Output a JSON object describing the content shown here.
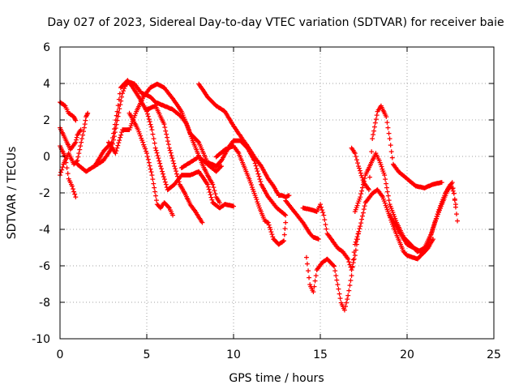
{
  "chart_data": {
    "type": "scatter",
    "title": "Day 027 of 2023, Sidereal Day-to-day VTEC variation (SDTVAR) for receiver baie",
    "xlabel": "GPS time / hours",
    "ylabel": "SDTVAR / TECUs",
    "xlim": [
      0,
      25
    ],
    "ylim": [
      -10,
      6
    ],
    "xticks": [
      0,
      5,
      10,
      15,
      20,
      25
    ],
    "yticks": [
      -10,
      -8,
      -6,
      -4,
      -2,
      0,
      2,
      4,
      6
    ],
    "xtick_labels": [
      "0",
      "5",
      "10",
      "15",
      "20",
      "25"
    ],
    "ytick_labels": [
      "-10",
      "-8",
      "-6",
      "-4",
      "-2",
      "0",
      "2",
      "4",
      "6"
    ],
    "grid": true,
    "marker": "+",
    "marker_color": "#ff0000",
    "series": [
      {
        "name": "track-1",
        "points": [
          [
            0.0,
            3.0
          ],
          [
            0.3,
            2.8
          ],
          [
            0.5,
            2.4
          ],
          [
            0.8,
            2.2
          ],
          [
            0.9,
            2.0
          ]
        ]
      },
      {
        "name": "track-2",
        "points": [
          [
            0.0,
            1.6
          ],
          [
            0.3,
            1.0
          ],
          [
            0.6,
            0.4
          ],
          [
            0.9,
            0.8
          ],
          [
            1.0,
            1.2
          ],
          [
            1.2,
            1.5
          ]
        ]
      },
      {
        "name": "track-3",
        "points": [
          [
            0.0,
            -1.0
          ],
          [
            0.2,
            -0.4
          ],
          [
            0.5,
            0.2
          ],
          [
            0.8,
            -0.4
          ],
          [
            1.0,
            -0.2
          ],
          [
            1.4,
            1.6
          ],
          [
            1.5,
            2.2
          ],
          [
            1.6,
            2.4
          ]
        ]
      },
      {
        "name": "track-4",
        "points": [
          [
            0.0,
            0.6
          ],
          [
            0.3,
            0.0
          ],
          [
            0.5,
            -1.2
          ],
          [
            0.7,
            -1.6
          ],
          [
            0.9,
            -2.2
          ]
        ]
      },
      {
        "name": "track-5",
        "points": [
          [
            1.0,
            -0.4
          ],
          [
            1.5,
            -0.8
          ],
          [
            2.0,
            -0.5
          ],
          [
            2.5,
            -0.2
          ],
          [
            3.0,
            0.5
          ],
          [
            3.3,
            2.0
          ],
          [
            3.6,
            3.5
          ],
          [
            3.8,
            4.0
          ],
          [
            4.0,
            4.1
          ],
          [
            4.3,
            4.0
          ],
          [
            4.7,
            3.5
          ],
          [
            5.2,
            3.3
          ],
          [
            5.5,
            3.0
          ],
          [
            6.0,
            2.8
          ],
          [
            6.5,
            2.6
          ],
          [
            7.0,
            2.2
          ],
          [
            7.3,
            1.8
          ],
          [
            7.6,
            1.0
          ],
          [
            7.9,
            0.3
          ],
          [
            8.2,
            -0.4
          ],
          [
            8.5,
            -1.0
          ],
          [
            8.8,
            -1.5
          ],
          [
            9.0,
            -2.2
          ],
          [
            9.2,
            -2.5
          ]
        ]
      },
      {
        "name": "track-6",
        "points": [
          [
            2.0,
            -0.5
          ],
          [
            2.5,
            0.3
          ],
          [
            3.0,
            0.8
          ],
          [
            3.3,
            2.5
          ],
          [
            3.5,
            3.8
          ],
          [
            3.9,
            4.2
          ],
          [
            4.2,
            3.8
          ],
          [
            4.6,
            3.2
          ],
          [
            5.0,
            2.5
          ],
          [
            5.3,
            1.5
          ],
          [
            5.5,
            0.5
          ],
          [
            5.8,
            -0.5
          ],
          [
            6.2,
            -1.8
          ],
          [
            6.6,
            -1.5
          ],
          [
            7.0,
            -1.0
          ],
          [
            7.5,
            -1.0
          ],
          [
            8.0,
            -0.8
          ],
          [
            8.5,
            -1.5
          ],
          [
            8.8,
            -2.5
          ],
          [
            9.2,
            -2.8
          ],
          [
            9.5,
            -2.6
          ],
          [
            10.0,
            -2.7
          ]
        ]
      },
      {
        "name": "track-7",
        "points": [
          [
            2.8,
            0.8
          ],
          [
            3.2,
            0.2
          ],
          [
            3.6,
            1.5
          ],
          [
            4.0,
            1.5
          ],
          [
            4.4,
            2.5
          ],
          [
            4.8,
            3.3
          ],
          [
            5.2,
            3.8
          ],
          [
            5.6,
            4.0
          ],
          [
            6.0,
            3.8
          ],
          [
            6.5,
            3.2
          ],
          [
            7.0,
            2.5
          ],
          [
            7.5,
            1.3
          ],
          [
            8.0,
            0.8
          ],
          [
            8.5,
            -0.3
          ],
          [
            9.0,
            -0.5
          ],
          [
            9.3,
            -0.2
          ],
          [
            9.7,
            0.5
          ],
          [
            10.0,
            0.9
          ],
          [
            10.4,
            0.9
          ],
          [
            10.8,
            0.5
          ],
          [
            11.2,
            -0.2
          ],
          [
            11.6,
            -1.5
          ],
          [
            12.0,
            -2.2
          ],
          [
            12.5,
            -2.8
          ],
          [
            13.0,
            -3.2
          ]
        ]
      },
      {
        "name": "track-8",
        "points": [
          [
            4.0,
            2.4
          ],
          [
            4.5,
            1.5
          ],
          [
            5.0,
            0.2
          ],
          [
            5.3,
            -1.0
          ],
          [
            5.6,
            -2.6
          ],
          [
            5.8,
            -2.8
          ],
          [
            6.0,
            -2.5
          ],
          [
            6.3,
            -2.8
          ],
          [
            6.5,
            -3.2
          ]
        ]
      },
      {
        "name": "track-9",
        "points": [
          [
            5.0,
            2.6
          ],
          [
            5.5,
            2.8
          ],
          [
            6.0,
            1.8
          ],
          [
            6.3,
            0.5
          ],
          [
            6.6,
            -0.5
          ],
          [
            6.9,
            -1.5
          ],
          [
            7.2,
            -2.0
          ],
          [
            7.5,
            -2.6
          ],
          [
            7.8,
            -3.0
          ],
          [
            8.0,
            -3.3
          ],
          [
            8.2,
            -3.6
          ]
        ]
      },
      {
        "name": "track-10",
        "points": [
          [
            8.0,
            4.0
          ],
          [
            8.5,
            3.3
          ],
          [
            9.0,
            2.8
          ],
          [
            9.5,
            2.5
          ],
          [
            10.0,
            1.7
          ],
          [
            10.5,
            1.0
          ],
          [
            10.8,
            0.6
          ],
          [
            11.2,
            0.0
          ],
          [
            11.6,
            -0.5
          ],
          [
            12.0,
            -1.2
          ],
          [
            12.3,
            -1.6
          ],
          [
            12.6,
            -2.1
          ],
          [
            12.8,
            -2.1
          ],
          [
            13.0,
            -2.2
          ],
          [
            13.2,
            -2.1
          ]
        ]
      },
      {
        "name": "track-11",
        "points": [
          [
            9.0,
            0.0
          ],
          [
            9.5,
            0.4
          ],
          [
            10.0,
            0.6
          ],
          [
            10.3,
            0.2
          ],
          [
            10.6,
            -0.5
          ],
          [
            10.9,
            -1.2
          ],
          [
            11.2,
            -2.0
          ],
          [
            11.5,
            -2.8
          ],
          [
            11.8,
            -3.5
          ],
          [
            12.0,
            -3.6
          ],
          [
            12.3,
            -4.5
          ],
          [
            12.6,
            -4.8
          ],
          [
            12.9,
            -4.6
          ],
          [
            13.0,
            -3.6
          ]
        ]
      },
      {
        "name": "track-12",
        "points": [
          [
            7.0,
            -0.6
          ],
          [
            7.5,
            -0.3
          ],
          [
            8.0,
            0.0
          ],
          [
            8.5,
            -0.4
          ],
          [
            9.0,
            -0.8
          ],
          [
            9.3,
            -0.5
          ]
        ]
      },
      {
        "name": "track-13",
        "points": [
          [
            13.0,
            -2.4
          ],
          [
            13.5,
            -3.0
          ],
          [
            14.0,
            -3.6
          ],
          [
            14.4,
            -4.2
          ],
          [
            14.6,
            -4.4
          ],
          [
            14.9,
            -4.5
          ]
        ]
      },
      {
        "name": "track-14",
        "points": [
          [
            14.0,
            -2.8
          ],
          [
            14.5,
            -2.9
          ],
          [
            14.8,
            -3.0
          ],
          [
            15.0,
            -2.6
          ],
          [
            15.2,
            -3.2
          ],
          [
            15.4,
            -4.2
          ],
          [
            15.7,
            -4.6
          ],
          [
            16.0,
            -5.0
          ],
          [
            16.3,
            -5.2
          ],
          [
            16.6,
            -5.6
          ],
          [
            16.8,
            -6.2
          ],
          [
            17.0,
            -5.4
          ],
          [
            17.2,
            -4.2
          ]
        ]
      },
      {
        "name": "track-15",
        "points": [
          [
            14.2,
            -5.5
          ],
          [
            14.4,
            -7.0
          ],
          [
            14.6,
            -7.4
          ],
          [
            14.8,
            -6.2
          ],
          [
            15.1,
            -5.8
          ],
          [
            15.4,
            -5.6
          ],
          [
            15.8,
            -6.0
          ],
          [
            16.0,
            -7.0
          ],
          [
            16.2,
            -8.0
          ],
          [
            16.4,
            -8.4
          ],
          [
            16.6,
            -7.6
          ],
          [
            16.8,
            -6.5
          ],
          [
            17.0,
            -4.8
          ],
          [
            17.3,
            -3.8
          ],
          [
            17.6,
            -2.5
          ],
          [
            18.0,
            -2.0
          ],
          [
            18.3,
            -1.8
          ],
          [
            18.6,
            -2.2
          ],
          [
            18.9,
            -3.0
          ],
          [
            19.2,
            -3.8
          ],
          [
            19.5,
            -4.5
          ],
          [
            19.8,
            -5.2
          ],
          [
            20.0,
            -5.4
          ],
          [
            20.3,
            -5.5
          ],
          [
            20.6,
            -5.6
          ],
          [
            20.9,
            -5.3
          ],
          [
            21.2,
            -5.0
          ],
          [
            21.5,
            -4.5
          ]
        ]
      },
      {
        "name": "track-16",
        "points": [
          [
            16.8,
            0.5
          ],
          [
            17.0,
            0.2
          ],
          [
            17.2,
            -0.5
          ],
          [
            17.5,
            -1.4
          ],
          [
            17.8,
            -1.8
          ],
          [
            18.0,
            1.0
          ],
          [
            18.3,
            2.5
          ],
          [
            18.5,
            2.8
          ],
          [
            18.8,
            2.2
          ],
          [
            19.0,
            1.0
          ],
          [
            19.2,
            -0.4
          ],
          [
            19.5,
            -0.8
          ],
          [
            20.0,
            -1.2
          ],
          [
            20.5,
            -1.6
          ],
          [
            21.0,
            -1.7
          ],
          [
            21.5,
            -1.5
          ],
          [
            22.0,
            -1.4
          ]
        ]
      },
      {
        "name": "track-17",
        "points": [
          [
            17.0,
            -3.0
          ],
          [
            17.3,
            -2.2
          ],
          [
            17.6,
            -1.0
          ],
          [
            17.9,
            -0.4
          ],
          [
            18.2,
            0.2
          ],
          [
            18.4,
            -0.2
          ],
          [
            18.7,
            -1.0
          ],
          [
            19.0,
            -2.6
          ],
          [
            19.4,
            -3.6
          ],
          [
            19.8,
            -4.4
          ],
          [
            20.2,
            -4.8
          ],
          [
            20.6,
            -5.2
          ],
          [
            21.0,
            -5.0
          ],
          [
            21.4,
            -4.2
          ],
          [
            21.8,
            -3.0
          ],
          [
            22.2,
            -2.0
          ],
          [
            22.5,
            -1.5
          ],
          [
            22.7,
            -2.0
          ],
          [
            22.9,
            -3.5
          ]
        ]
      },
      {
        "name": "track-18",
        "points": [
          [
            19.0,
            -3.2
          ],
          [
            19.5,
            -4.0
          ],
          [
            20.0,
            -4.8
          ],
          [
            20.4,
            -5.0
          ],
          [
            20.8,
            -5.2
          ],
          [
            21.2,
            -4.8
          ],
          [
            21.6,
            -3.6
          ],
          [
            22.0,
            -2.6
          ],
          [
            22.3,
            -1.9
          ],
          [
            22.6,
            -1.4
          ],
          [
            22.8,
            -2.6
          ]
        ]
      }
    ]
  }
}
